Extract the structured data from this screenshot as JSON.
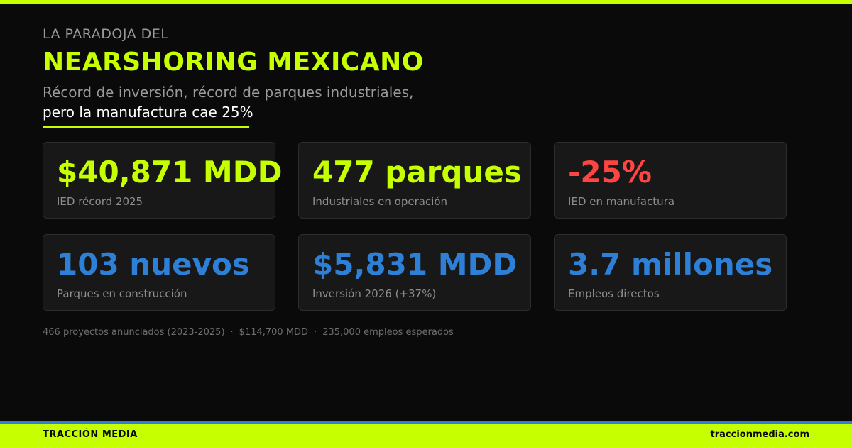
{
  "header": {
    "eyebrow": "LA PARADOJA DEL",
    "title": "NEARSHORING MEXICANO",
    "subtitle_line1": "Récord de inversión, récord de parques industriales,",
    "subtitle_line2": "pero la manufactura cae 25%"
  },
  "stats": [
    {
      "value": "$40,871 MDD",
      "label": "IED récord 2025",
      "color": "#c6ff00"
    },
    {
      "value": "477 parques",
      "label": "Industriales en operación",
      "color": "#c6ff00"
    },
    {
      "value": "-25%",
      "label": "IED en manufactura",
      "color": "#ff4444"
    },
    {
      "value": "103 nuevos",
      "label": "Parques en construcción",
      "color": "#2e7fd6"
    },
    {
      "value": "$5,831 MDD",
      "label": "Inversión 2026 (+37%)",
      "color": "#2e7fd6"
    },
    {
      "value": "3.7 millones",
      "label": "Empleos directos",
      "color": "#2e7fd6"
    }
  ],
  "footnote": {
    "items": [
      "466 proyectos anunciados (2023-2025)",
      "$114,700 MDD",
      "235,000 empleos esperados"
    ],
    "separator": "·"
  },
  "footer": {
    "brand": "TRACCIÓN MEDIA",
    "site": "traccionmedia.com"
  },
  "colors": {
    "accent_green": "#c6ff00",
    "accent_blue": "#2e7fd6",
    "accent_red": "#ff4444",
    "background": "#0a0a0a"
  }
}
